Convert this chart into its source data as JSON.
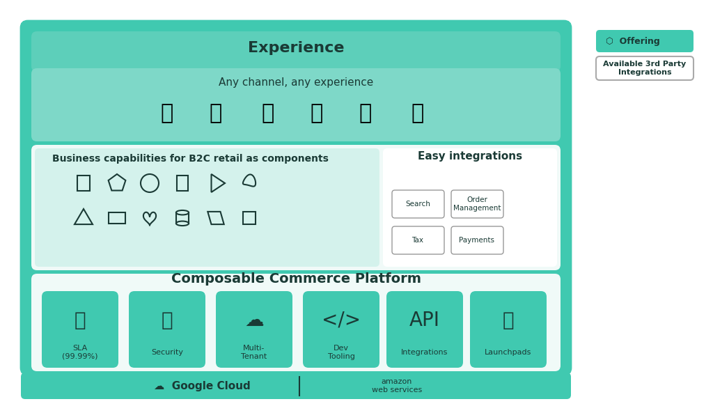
{
  "bg_color": "#ffffff",
  "outer_border_color": "#40c9b0",
  "outer_fill": "#40c9b0",
  "section_fill_teal": "#6dd5c0",
  "section_fill_light": "#e8f8f5",
  "section_fill_white": "#ffffff",
  "inner_card_teal": "#3dbfaa",
  "title": "Experience",
  "subtitle": "Any channel, any experience",
  "b2c_title": "Business capabilities for B2C retail as components",
  "easy_title": "Easy integrations",
  "platform_title": "Composable Commerce Platform",
  "channel_icons": [
    "📱",
    "🏪",
    "🖥",
    "🚗",
    "🎮",
    "⌚"
  ],
  "easy_boxes": [
    [
      "Search",
      "Order\nManagement"
    ],
    [
      "Tax",
      "Payments"
    ]
  ],
  "platform_cards": [
    {
      "label": "SLA\n(99.99%)",
      "icon": "⏱"
    },
    {
      "label": "Security",
      "icon": "🔒"
    },
    {
      "label": "Multi-\nTenant",
      "icon": "☁"
    },
    {
      "label": "Dev\nTooling",
      "icon": "</>"
    },
    {
      "label": "Integrations",
      "icon": "API"
    },
    {
      "label": "Launchpads",
      "icon": "🚀"
    }
  ],
  "legend_offering_color": "#40c9b0",
  "legend_3rdparty_color": "#ffffff",
  "google_cloud_text": "Google Cloud",
  "aws_text": "amazon\nweb services",
  "legend_offering_label": "Offering",
  "legend_3rdparty_label": "Available 3rd Party\nIntegrations"
}
